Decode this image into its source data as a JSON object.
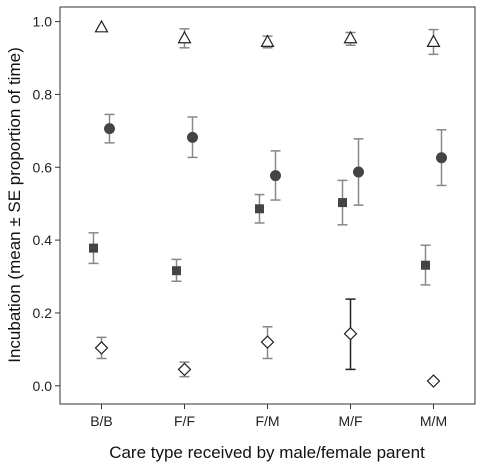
{
  "chart_data": {
    "type": "scatter",
    "title": "",
    "xlabel": "Care type received by male/female parent",
    "ylabel": "Incubation (mean ± SE proportion of time)",
    "categories": [
      "B/B",
      "F/F",
      "F/M",
      "M/F",
      "M/M"
    ],
    "ylim": [
      -0.05,
      1.04
    ],
    "yticks": [
      "0.0",
      "0.2",
      "0.4",
      "0.6",
      "0.8",
      "1.0"
    ],
    "grid": false,
    "legend": "none",
    "series": [
      {
        "marker": "open-triangle",
        "color": "#222222",
        "errorbar_color": "#888888",
        "values": [
          0.985,
          0.955,
          0.945,
          0.955,
          0.945
        ],
        "lower": [
          null,
          0.928,
          0.928,
          0.935,
          0.91
        ],
        "upper": [
          null,
          0.98,
          0.96,
          0.97,
          0.978
        ]
      },
      {
        "marker": "filled-circle",
        "color": "#444444",
        "errorbar_color": "#888888",
        "values": [
          0.706,
          0.682,
          0.577,
          0.587,
          0.626
        ],
        "lower": [
          0.667,
          0.627,
          0.51,
          0.496,
          0.55
        ],
        "upper": [
          0.745,
          0.738,
          0.645,
          0.678,
          0.703
        ]
      },
      {
        "marker": "filled-square",
        "color": "#444444",
        "errorbar_color": "#888888",
        "values": [
          0.378,
          0.316,
          0.486,
          0.503,
          0.331
        ],
        "lower": [
          0.336,
          0.287,
          0.447,
          0.442,
          0.277
        ],
        "upper": [
          0.42,
          0.347,
          0.525,
          0.564,
          0.386
        ]
      },
      {
        "marker": "open-diamond",
        "color": "#222222",
        "errorbar_color": "#888888",
        "errorbar_colors": [
          null,
          null,
          null,
          "#222222",
          null
        ],
        "values": [
          0.104,
          0.045,
          0.12,
          0.143,
          0.013
        ],
        "lower": [
          0.075,
          0.025,
          0.075,
          0.045,
          null
        ],
        "upper": [
          0.133,
          0.065,
          0.162,
          0.238,
          null
        ]
      }
    ]
  }
}
